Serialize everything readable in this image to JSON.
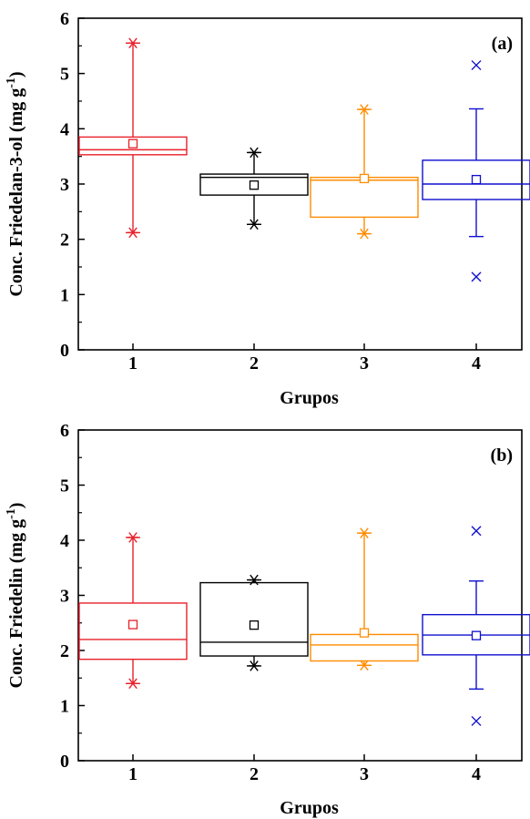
{
  "chart_data": [
    {
      "type": "box",
      "panel_label": "(a)",
      "xlabel": "Grupos",
      "ylabel": "Conc. Friedelan-3-ol (mg g",
      "ylabel_sup": "-1",
      "ylabel_close": ")",
      "ylim": [
        0,
        6
      ],
      "yticks": [
        0,
        1,
        2,
        3,
        4,
        5,
        6
      ],
      "categories": [
        "1",
        "2",
        "3",
        "4"
      ],
      "grid": false,
      "boxes": [
        {
          "group": "1",
          "color": "#e8202a",
          "q1": 3.53,
          "median": 3.62,
          "q3": 3.85,
          "mean": 3.73,
          "whisker_low": 2.12,
          "whisker_high": 5.55,
          "min_marker": 2.12,
          "max_marker": 5.55,
          "outliers": [],
          "marker": "asterisk"
        },
        {
          "group": "2",
          "color": "#000000",
          "q1": 2.8,
          "median": 3.12,
          "q3": 3.18,
          "mean": 2.98,
          "whisker_low": 2.27,
          "whisker_high": 3.57,
          "min_marker": 2.27,
          "max_marker": 3.57,
          "outliers": [],
          "marker": "asterisk"
        },
        {
          "group": "3",
          "color": "#ff8c00",
          "q1": 2.4,
          "median": 3.07,
          "q3": 3.12,
          "mean": 3.1,
          "whisker_low": 2.1,
          "whisker_high": 4.35,
          "min_marker": 2.1,
          "max_marker": 4.35,
          "outliers": [],
          "marker": "asterisk"
        },
        {
          "group": "4",
          "color": "#1010d0",
          "q1": 2.72,
          "median": 3.0,
          "q3": 3.43,
          "mean": 3.08,
          "whisker_low": 2.05,
          "whisker_high": 4.36,
          "min_marker": null,
          "max_marker": null,
          "outliers": [
            1.32,
            5.15
          ],
          "marker": "cross"
        }
      ]
    },
    {
      "type": "box",
      "panel_label": "(b)",
      "xlabel": "Grupos",
      "ylabel": "Conc. Friedelin (mg g",
      "ylabel_sup": "-1",
      "ylabel_close": ")",
      "ylim": [
        0,
        6
      ],
      "yticks": [
        0,
        1,
        2,
        3,
        4,
        5,
        6
      ],
      "categories": [
        "1",
        "2",
        "3",
        "4"
      ],
      "grid": false,
      "boxes": [
        {
          "group": "1",
          "color": "#e8202a",
          "q1": 1.84,
          "median": 2.2,
          "q3": 2.86,
          "mean": 2.47,
          "whisker_low": 1.4,
          "whisker_high": 4.05,
          "min_marker": 1.4,
          "max_marker": 4.05,
          "outliers": [],
          "marker": "asterisk"
        },
        {
          "group": "2",
          "color": "#000000",
          "q1": 1.9,
          "median": 2.15,
          "q3": 3.23,
          "mean": 2.46,
          "whisker_low": 1.72,
          "whisker_high": 3.28,
          "min_marker": 1.72,
          "max_marker": 3.28,
          "outliers": [],
          "marker": "asterisk"
        },
        {
          "group": "3",
          "color": "#ff8c00",
          "q1": 1.81,
          "median": 2.1,
          "q3": 2.29,
          "mean": 2.32,
          "whisker_low": 1.73,
          "whisker_high": 4.13,
          "min_marker": 1.73,
          "max_marker": 4.13,
          "outliers": [],
          "marker": "asterisk"
        },
        {
          "group": "4",
          "color": "#1010d0",
          "q1": 1.92,
          "median": 2.28,
          "q3": 2.65,
          "mean": 2.27,
          "whisker_low": 1.3,
          "whisker_high": 3.26,
          "min_marker": null,
          "max_marker": null,
          "outliers": [
            0.72,
            4.17
          ],
          "marker": "cross"
        }
      ]
    }
  ]
}
